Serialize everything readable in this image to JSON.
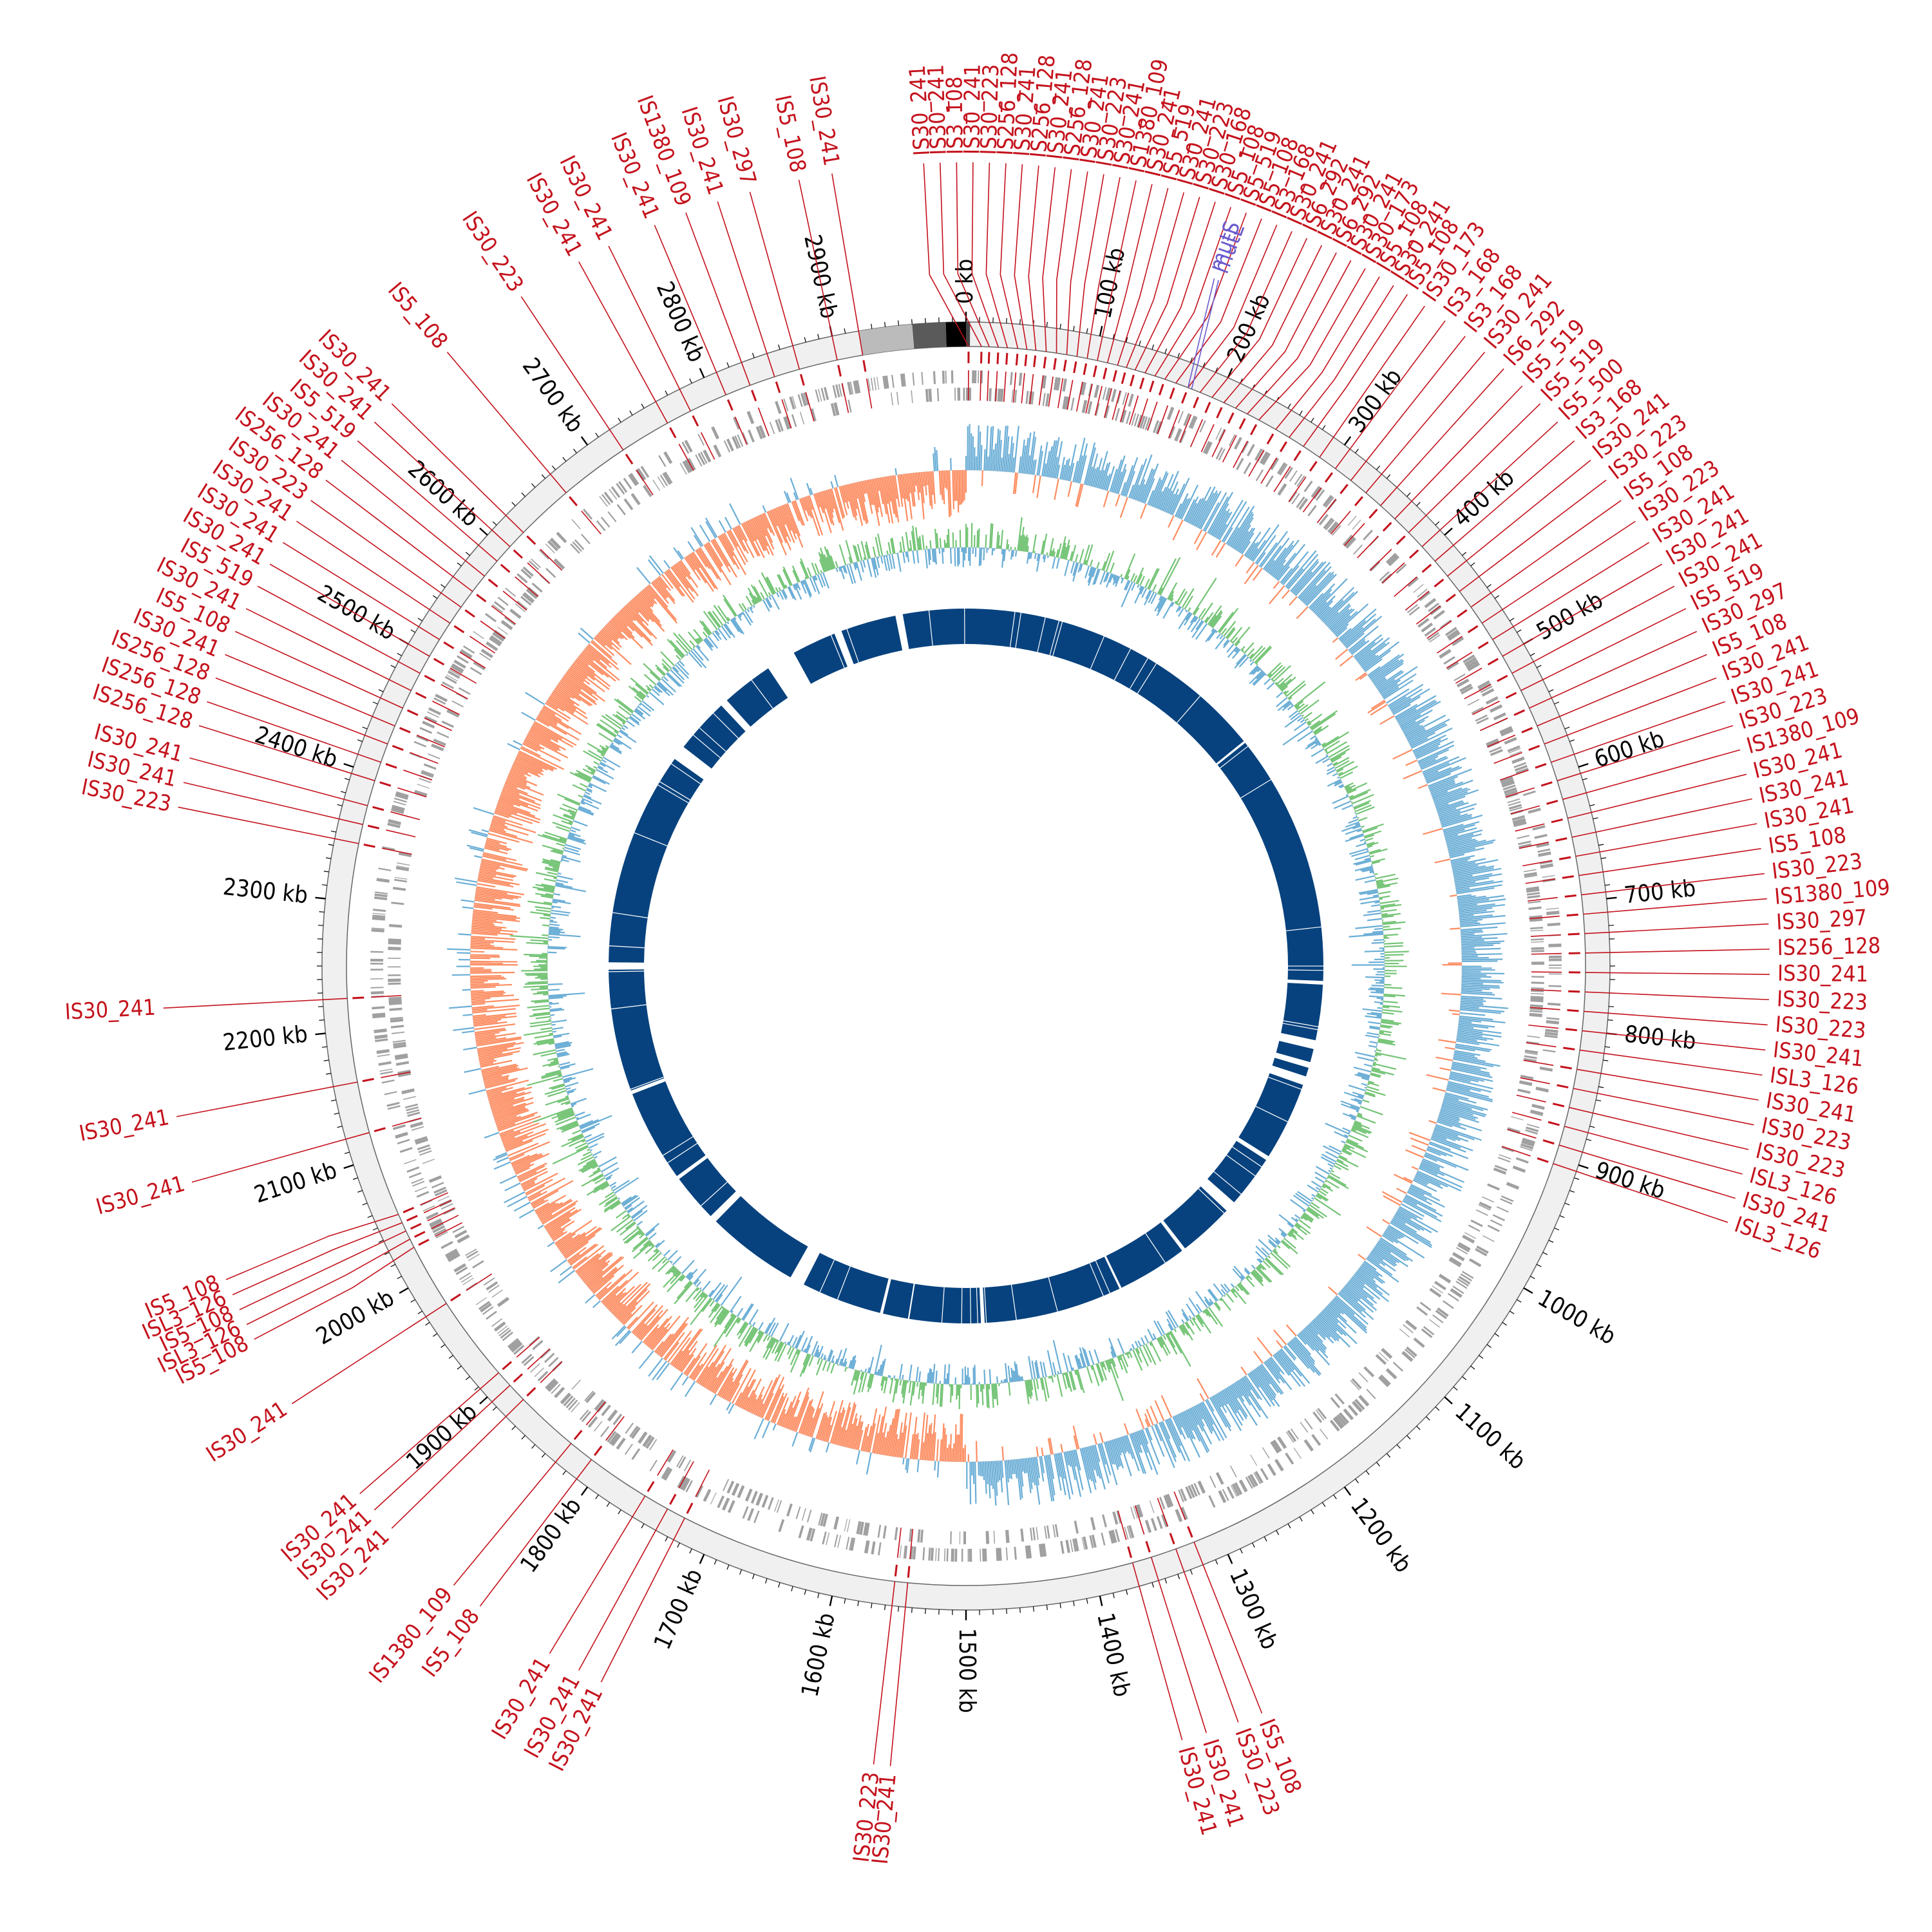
{
  "map": {
    "genome_length_kb": 3000,
    "tick_labels": [
      "0 kb",
      "100 kb",
      "200 kb",
      "300 kb",
      "400 kb",
      "500 kb",
      "600 kb",
      "700 kb",
      "800 kb",
      "900 kb",
      "1000 kb",
      "1100 kb",
      "1200 kb",
      "1300 kb",
      "1400 kb",
      "1500 kb",
      "1600 kb",
      "1700 kb",
      "1800 kb",
      "1900 kb",
      "2000 kb",
      "2100 kb",
      "2200 kb",
      "2300 kb",
      "2400 kb",
      "2500 kb",
      "2600 kb",
      "2700 kb",
      "2800 kb",
      "2900 kb"
    ],
    "colors": {
      "is_element": "#c4121c",
      "special_element": "#6a5acd",
      "backbone": "#f0f0f0",
      "cds": "#a0a0a0",
      "gc_skew_positive": "#6baed6",
      "gc_skew_negative": "#fc8d62",
      "gc_content_positive": "#74c476",
      "gc_content_negative": "#6baed6",
      "synteny": "#08427e",
      "text": "#000000"
    },
    "is_elements": [
      {
        "kb": 2.0,
        "label": "IS30_241"
      },
      {
        "kb": 12.0,
        "label": "IS30_241"
      },
      {
        "kb": 18.0,
        "label": "IS3_108"
      },
      {
        "kb": 25.0,
        "label": "IS30_241"
      },
      {
        "kb": 32.0,
        "label": "IS30_223"
      },
      {
        "kb": 40.0,
        "label": "IS256_128"
      },
      {
        "kb": 47.0,
        "label": "IS30_241"
      },
      {
        "kb": 54.0,
        "label": "IS256_128"
      },
      {
        "kb": 62.0,
        "label": "IS30_241"
      },
      {
        "kb": 70.0,
        "label": "IS256_128"
      },
      {
        "kb": 78.0,
        "label": "IS30_241"
      },
      {
        "kb": 86.0,
        "label": "IS30_223"
      },
      {
        "kb": 94.0,
        "label": "IS30_241"
      },
      {
        "kb": 102.0,
        "label": "IS1380_109"
      },
      {
        "kb": 110.0,
        "label": "IS30_241"
      },
      {
        "kb": 118.0,
        "label": "IS5_519"
      },
      {
        "kb": 125.0,
        "label": "IS30_241"
      },
      {
        "kb": 132.0,
        "label": "IS30_223"
      },
      {
        "kb": 140.0,
        "label": "IS30_168"
      },
      {
        "kb": 148.0,
        "label": "IS5_108"
      },
      {
        "kb": 156.0,
        "label": "IS5_519"
      },
      {
        "kb": 165.0,
        "label": "IS5_108"
      },
      {
        "kb": 175.0,
        "label": "IS3_168"
      },
      {
        "kb": 185.0,
        "label": "IS30_241"
      },
      {
        "kb": 195.0,
        "label": "IS6_292"
      },
      {
        "kb": 205.0,
        "label": "IS30_241"
      },
      {
        "kb": 215.0,
        "label": "IS6_292"
      },
      {
        "kb": 225.0,
        "label": "IS30_241"
      },
      {
        "kb": 235.0,
        "label": "IS30_173"
      },
      {
        "kb": 250.0,
        "label": "IS5_108"
      },
      {
        "kb": 262.0,
        "label": "IS30_241"
      },
      {
        "kb": 275.0,
        "label": "IS5_108"
      },
      {
        "kb": 290.0,
        "label": "IS30_173"
      },
      {
        "kb": 305.0,
        "label": "IS3_168"
      },
      {
        "kb": 320.0,
        "label": "IS3_168"
      },
      {
        "kb": 335.0,
        "label": "IS30_241"
      },
      {
        "kb": 350.0,
        "label": "IS6_292"
      },
      {
        "kb": 365.0,
        "label": "IS5_519"
      },
      {
        "kb": 380.0,
        "label": "IS5_519"
      },
      {
        "kb": 395.0,
        "label": "IS5_500"
      },
      {
        "kb": 410.0,
        "label": "IS3_168"
      },
      {
        "kb": 425.0,
        "label": "IS30_241"
      },
      {
        "kb": 440.0,
        "label": "IS30_223"
      },
      {
        "kb": 455.0,
        "label": "IS5_108"
      },
      {
        "kb": 470.0,
        "label": "IS30_223"
      },
      {
        "kb": 485.0,
        "label": "IS30_241"
      },
      {
        "kb": 500.0,
        "label": "IS30_241"
      },
      {
        "kb": 515.0,
        "label": "IS30_241"
      },
      {
        "kb": 530.0,
        "label": "IS5_519"
      },
      {
        "kb": 545.0,
        "label": "IS30_297"
      },
      {
        "kb": 560.0,
        "label": "IS5_108"
      },
      {
        "kb": 575.0,
        "label": "IS30_241"
      },
      {
        "kb": 590.0,
        "label": "IS30_241"
      },
      {
        "kb": 605.0,
        "label": "IS30_223"
      },
      {
        "kb": 620.0,
        "label": "IS1380_109"
      },
      {
        "kb": 635.0,
        "label": "IS30_241"
      },
      {
        "kb": 650.0,
        "label": "IS30_241"
      },
      {
        "kb": 665.0,
        "label": "IS30_241"
      },
      {
        "kb": 680.0,
        "label": "IS5_108"
      },
      {
        "kb": 695.0,
        "label": "IS30_223"
      },
      {
        "kb": 710.0,
        "label": "IS1380_109"
      },
      {
        "kb": 725.0,
        "label": "IS30_297"
      },
      {
        "kb": 740.0,
        "label": "IS256_128"
      },
      {
        "kb": 755.0,
        "label": "IS30_241"
      },
      {
        "kb": 770.0,
        "label": "IS30_223"
      },
      {
        "kb": 785.0,
        "label": "IS30_223"
      },
      {
        "kb": 800.0,
        "label": "IS30_241"
      },
      {
        "kb": 815.0,
        "label": "ISL3_126"
      },
      {
        "kb": 830.0,
        "label": "IS30_241"
      },
      {
        "kb": 845.0,
        "label": "IS30_223"
      },
      {
        "kb": 860.0,
        "label": "IS30_223"
      },
      {
        "kb": 875.0,
        "label": "ISL3_126"
      },
      {
        "kb": 890.0,
        "label": "IS30_241"
      },
      {
        "kb": 905.0,
        "label": "ISL3_126"
      },
      {
        "kb": 1320.0,
        "label": "IS5_108"
      },
      {
        "kb": 1335.0,
        "label": "IS30_223"
      },
      {
        "kb": 1355.0,
        "label": "IS30_241"
      },
      {
        "kb": 1370.0,
        "label": "IS30_241"
      },
      {
        "kb": 1545.0,
        "label": "IS30_241"
      },
      {
        "kb": 1555.0,
        "label": "IS30_223"
      },
      {
        "kb": 1725.0,
        "label": "IS30_241"
      },
      {
        "kb": 1740.0,
        "label": "IS30_241"
      },
      {
        "kb": 1760.0,
        "label": "IS30_241"
      },
      {
        "kb": 1810.0,
        "label": "IS5_108"
      },
      {
        "kb": 1830.0,
        "label": "IS1380_109"
      },
      {
        "kb": 1880.0,
        "label": "IS30_241"
      },
      {
        "kb": 1895.0,
        "label": "IS30_241"
      },
      {
        "kb": 1908.0,
        "label": "IS30_241"
      },
      {
        "kb": 1975.0,
        "label": "IS30_241"
      },
      {
        "kb": 2025.0,
        "label": "IS5_108"
      },
      {
        "kb": 2032.0,
        "label": "ISL3_126"
      },
      {
        "kb": 2039.0,
        "label": "IS5_108"
      },
      {
        "kb": 2046.0,
        "label": "ISL3_126"
      },
      {
        "kb": 2053.0,
        "label": "IS5_108"
      },
      {
        "kb": 2120.0,
        "label": "IS30_241"
      },
      {
        "kb": 2160.0,
        "label": "IS30_241"
      },
      {
        "kb": 2225.0,
        "label": "IS30_241"
      },
      {
        "kb": 2345.0,
        "label": "IS30_223"
      },
      {
        "kb": 2360.0,
        "label": "IS30_241"
      },
      {
        "kb": 2375.0,
        "label": "IS30_241"
      },
      {
        "kb": 2395.0,
        "label": "IS256_128"
      },
      {
        "kb": 2410.0,
        "label": "IS256_128"
      },
      {
        "kb": 2425.0,
        "label": "IS256_128"
      },
      {
        "kb": 2440.0,
        "label": "IS30_241"
      },
      {
        "kb": 2455.0,
        "label": "IS5_108"
      },
      {
        "kb": 2470.0,
        "label": "IS30_241"
      },
      {
        "kb": 2485.0,
        "label": "IS5_519"
      },
      {
        "kb": 2500.0,
        "label": "IS30_241"
      },
      {
        "kb": 2515.0,
        "label": "IS30_241"
      },
      {
        "kb": 2530.0,
        "label": "IS30_241"
      },
      {
        "kb": 2545.0,
        "label": "IS30_223"
      },
      {
        "kb": 2560.0,
        "label": "IS256_128"
      },
      {
        "kb": 2575.0,
        "label": "IS30_241"
      },
      {
        "kb": 2590.0,
        "label": "IS5_519"
      },
      {
        "kb": 2605.0,
        "label": "IS30_241"
      },
      {
        "kb": 2620.0,
        "label": "IS30_241"
      },
      {
        "kb": 2665.0,
        "label": "IS5_108"
      },
      {
        "kb": 2720.0,
        "label": "IS30_223"
      },
      {
        "kb": 2760.0,
        "label": "IS30_241"
      },
      {
        "kb": 2780.0,
        "label": "IS30_241"
      },
      {
        "kb": 2810.0,
        "label": "IS30_241"
      },
      {
        "kb": 2830.0,
        "label": "IS1380_109"
      },
      {
        "kb": 2850.0,
        "label": "IS30_241"
      },
      {
        "kb": 2870.0,
        "label": "IS30_297"
      },
      {
        "kb": 2900.0,
        "label": "IS5_108"
      },
      {
        "kb": 2920.0,
        "label": "IS30_241"
      }
    ],
    "special_elements": [
      {
        "kb": 175.0,
        "label": "mutS"
      },
      {
        "kb": 178.0,
        "label": "mutL"
      }
    ],
    "backbone_dark_blocks": [
      {
        "start_kb": 2920.0,
        "end_kb": 2960.0,
        "shade": "#bbbbbb"
      },
      {
        "start_kb": 2960.0,
        "end_kb": 2985.0,
        "shade": "#5a5a5a"
      },
      {
        "start_kb": 2985.0,
        "end_kb": 3000.0,
        "shade": "#000000"
      },
      {
        "start_kb": 0.0,
        "end_kb": 3.0,
        "shade": "#444444"
      }
    ],
    "synteny_gaps": [
      {
        "start_kb": 1018.0,
        "end_kb": 1024.0
      },
      {
        "start_kb": 1095.0,
        "end_kb": 1110.0
      },
      {
        "start_kb": 1185.0,
        "end_kb": 1190.0
      },
      {
        "start_kb": 1285.0,
        "end_kb": 1288.0
      },
      {
        "start_kb": 1475.0,
        "end_kb": 1480.0
      },
      {
        "start_kb": 1612.0,
        "end_kb": 1616.0
      },
      {
        "start_kb": 1725.0,
        "end_kb": 1745.0
      },
      {
        "start_kb": 1870.0,
        "end_kb": 1880.0
      },
      {
        "start_kb": 1945.0,
        "end_kb": 1950.0
      },
      {
        "start_kb": 2075.0,
        "end_kb": 2080.0
      },
      {
        "start_kb": 2245.0,
        "end_kb": 2255.0
      },
      {
        "start_kb": 2545.0,
        "end_kb": 2565.0
      },
      {
        "start_kb": 2640.0,
        "end_kb": 2650.0
      },
      {
        "start_kb": 2720.0,
        "end_kb": 2760.0
      },
      {
        "start_kb": 2820.0,
        "end_kb": 2830.0
      },
      {
        "start_kb": 2905.0,
        "end_kb": 2915.0
      },
      {
        "start_kb": 770.0,
        "end_kb": 775.0
      },
      {
        "start_kb": 850.0,
        "end_kb": 862.0
      },
      {
        "start_kb": 880.0,
        "end_kb": 888.0
      },
      {
        "start_kb": 900.0,
        "end_kb": 912.0
      },
      {
        "start_kb": 425.0,
        "end_kb": 428.0
      }
    ]
  }
}
